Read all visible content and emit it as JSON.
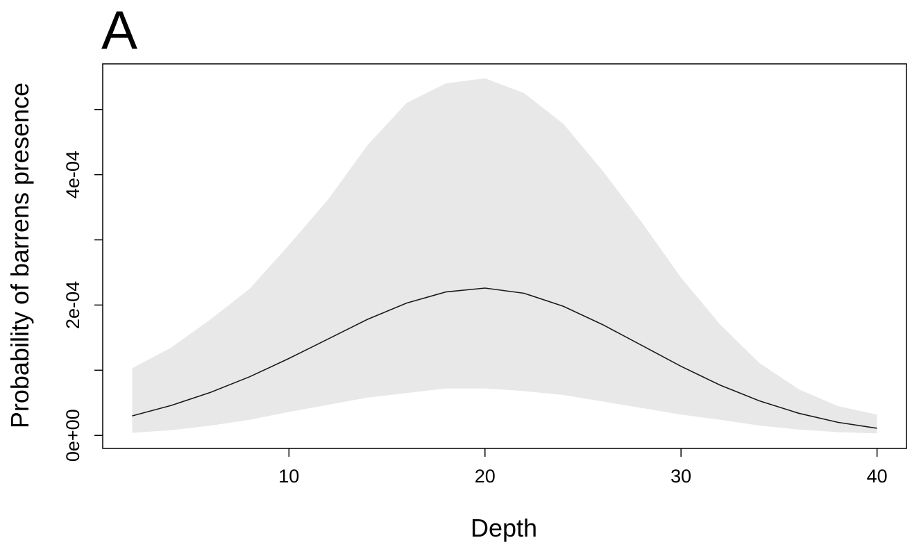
{
  "panel_label": "A",
  "colors": {
    "ribbon": "#e8e8e8",
    "line": "#1a1a1a",
    "axis": "#000000"
  },
  "chart_data": {
    "type": "line",
    "title": "",
    "xlabel": "Depth",
    "ylabel": "Probability of barrens presence",
    "xlim": [
      0.5,
      41.5
    ],
    "ylim": [
      -2e-05,
      0.00057
    ],
    "x_ticks": [
      10,
      20,
      30,
      40
    ],
    "x_tick_labels": [
      "10",
      "20",
      "30",
      "40"
    ],
    "y_ticks": [
      0,
      0.0001,
      0.0002,
      0.0003,
      0.0004,
      0.0005
    ],
    "y_tick_labels": [
      "0e+00",
      "",
      "2e-04",
      "",
      "4e-04",
      ""
    ],
    "grid": false,
    "legend": "none",
    "x": [
      2,
      4,
      6,
      8,
      10,
      12,
      14,
      16,
      18,
      20,
      22,
      24,
      26,
      28,
      30,
      32,
      34,
      36,
      38,
      40
    ],
    "series": [
      {
        "values": [
          3e-05,
          4.6e-05,
          6.6e-05,
          9e-05,
          0.000118,
          0.000148,
          0.000178,
          0.000203,
          0.00022,
          0.000226,
          0.000218,
          0.000198,
          0.00017,
          0.000138,
          0.000106,
          7.7e-05,
          5.3e-05,
          3.4e-05,
          2e-05,
          1.1e-05
        ],
        "lower": [
          4e-06,
          8e-06,
          1.5e-05,
          2.4e-05,
          3.6e-05,
          4.7e-05,
          5.8e-05,
          6.5e-05,
          7.2e-05,
          7.2e-05,
          6.8e-05,
          6.2e-05,
          5.2e-05,
          4.2e-05,
          3.2e-05,
          2.4e-05,
          1.5e-05,
          9e-06,
          5e-06,
          3e-06
        ],
        "upper": [
          0.000103,
          0.000135,
          0.000178,
          0.000225,
          0.000292,
          0.000362,
          0.000445,
          0.00051,
          0.00054,
          0.000548,
          0.000525,
          0.000478,
          0.000406,
          0.000327,
          0.000242,
          0.00017,
          0.000111,
          7.1e-05,
          4.5e-05,
          3.2e-05
        ]
      }
    ]
  }
}
